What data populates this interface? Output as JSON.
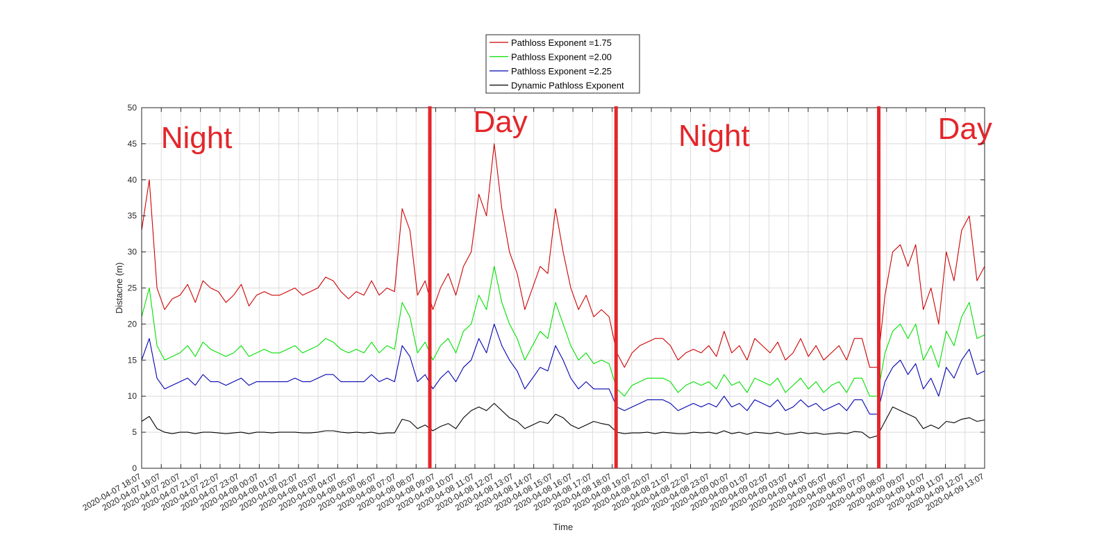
{
  "chart_data": {
    "type": "line",
    "title": "",
    "xlabel": "Time",
    "ylabel": "Distacne (m)",
    "ylim": [
      0,
      50
    ],
    "yticks": [
      0,
      5,
      10,
      15,
      20,
      25,
      30,
      35,
      40,
      45,
      50
    ],
    "grid": true,
    "legend_position": "top-center",
    "x_tick_labels": [
      "2020-04-07  18:07",
      "2020-04-07  19:07",
      "2020-04-07  20:07",
      "2020-04-07  21:07",
      "2020-04-07  22:07",
      "2020-04-07  23:07",
      "2020-04-08  00:07",
      "2020-04-08  01:07",
      "2020-04-08  02:07",
      "2020-04-08  03:07",
      "2020-04-08  04:07",
      "2020-04-08  05:07",
      "2020-04-08  06:07",
      "2020-04-08  07:07",
      "2020-04-08  08:07",
      "2020-04-08  09:07",
      "2020-04-08  10:07",
      "2020-04-08  11:07",
      "2020-04-08  12:07",
      "2020-04-08  13:07",
      "2020-04-08  14:07",
      "2020-04-08  15:07",
      "2020-04-08  16:07",
      "2020-04-08  17:07",
      "2020-04-08  18:07",
      "2020-04-08  19:07",
      "2020-04-08  20:07",
      "2020-04-08  21:07",
      "2020-04-08  22:07",
      "2020-04-08  23:07",
      "2020-04-09  00:07",
      "2020-04-09  01:07",
      "2020-04-09  02:07",
      "2020-04-09  03:07",
      "2020-04-09  04:07",
      "2020-04-09  05:07",
      "2020-04-09  06:07",
      "2020-04-09  07:07",
      "2020-04-09  08:07",
      "2020-04-09  09:07",
      "2020-04-09  10:07",
      "2020-04-09  11:07",
      "2020-04-09  12:07",
      "2020-04-09  13:07"
    ],
    "series": [
      {
        "name": "Pathloss Exponent =1.75",
        "color": "#cc0000",
        "values": [
          33,
          40,
          25,
          22,
          23.5,
          24,
          25.5,
          23,
          26,
          25,
          24.5,
          23,
          24,
          25.5,
          22.5,
          24,
          24.5,
          24,
          24,
          24.5,
          25,
          24,
          24.5,
          25,
          26.5,
          26,
          24.5,
          23.5,
          24.5,
          24,
          26,
          24,
          25,
          24.5,
          36,
          33,
          24,
          26,
          22,
          25,
          27,
          24,
          28,
          30,
          38,
          35,
          45,
          36,
          30,
          27,
          22,
          25,
          28,
          27,
          36,
          30,
          25,
          22,
          24,
          21,
          22,
          21,
          16,
          14,
          16,
          17,
          17.5,
          18,
          18,
          17,
          15,
          16,
          16.5,
          16,
          17,
          15.5,
          19,
          16,
          17,
          15,
          18,
          17,
          16,
          17.5,
          15,
          16,
          18,
          15.5,
          17,
          15,
          16,
          17,
          15,
          18,
          18,
          14,
          14,
          24,
          30,
          31,
          28,
          31,
          22,
          25,
          20,
          30,
          26,
          33,
          35,
          26,
          28
        ]
      },
      {
        "name": "Pathloss Exponent =2.00",
        "color": "#00e000",
        "values": [
          21,
          25,
          17,
          15,
          15.5,
          16,
          17,
          15.5,
          17.5,
          16.5,
          16,
          15.5,
          16,
          17,
          15.5,
          16,
          16.5,
          16,
          16,
          16.5,
          17,
          16,
          16.5,
          17,
          18,
          17.5,
          16.5,
          16,
          16.5,
          16,
          17.5,
          16,
          17,
          16.5,
          23,
          21,
          16,
          17.5,
          15,
          17,
          18,
          16,
          19,
          20,
          24,
          22,
          28,
          23,
          20,
          18,
          15,
          17,
          19,
          18,
          23,
          20,
          17,
          15,
          16,
          14.5,
          15,
          14.5,
          11,
          10,
          11.5,
          12,
          12.5,
          12.5,
          12.5,
          12,
          10.5,
          11.5,
          12,
          11.5,
          12,
          11,
          13,
          11.5,
          12,
          10.5,
          12.5,
          12,
          11.5,
          12.5,
          10.5,
          11.5,
          12.5,
          11,
          12,
          10.5,
          11.5,
          12,
          10.5,
          12.5,
          12.5,
          10,
          10,
          16,
          19,
          20,
          18,
          20,
          15,
          17,
          14,
          19,
          17,
          21,
          23,
          18,
          18.5
        ]
      },
      {
        "name": "Pathloss Exponent =2.25",
        "color": "#0000b0",
        "values": [
          15,
          18,
          12.5,
          11,
          11.5,
          12,
          12.5,
          11.5,
          13,
          12,
          12,
          11.5,
          12,
          12.5,
          11.5,
          12,
          12,
          12,
          12,
          12,
          12.5,
          12,
          12,
          12.5,
          13,
          13,
          12,
          12,
          12,
          12,
          13,
          12,
          12.5,
          12,
          17,
          15.5,
          12,
          13,
          11,
          12.5,
          13.5,
          12,
          14,
          15,
          18,
          16,
          20,
          17,
          15,
          13.5,
          11,
          12.5,
          14,
          13.5,
          17,
          15,
          12.5,
          11,
          12,
          11,
          11,
          11,
          8.5,
          8,
          8.5,
          9,
          9.5,
          9.5,
          9.5,
          9,
          8,
          8.5,
          9,
          8.5,
          9,
          8.5,
          10,
          8.5,
          9,
          8,
          9.5,
          9,
          8.5,
          9.5,
          8,
          8.5,
          9.5,
          8.5,
          9,
          8,
          8.5,
          9,
          8,
          9.5,
          9.5,
          7.5,
          7.5,
          12,
          14,
          15,
          13,
          14.5,
          11,
          12.5,
          10,
          14,
          12.5,
          15,
          16.5,
          13,
          13.5
        ]
      },
      {
        "name": "Dynamic Pathloss Exponent",
        "color": "#000000",
        "values": [
          6.5,
          7.2,
          5.5,
          5,
          4.8,
          5,
          5,
          4.8,
          5,
          5,
          4.9,
          4.8,
          4.9,
          5,
          4.8,
          5,
          5,
          4.9,
          5,
          5,
          5,
          4.9,
          4.9,
          5,
          5.2,
          5.2,
          5,
          4.9,
          5,
          4.9,
          5,
          4.8,
          4.9,
          4.9,
          6.8,
          6.5,
          5.5,
          6,
          5.2,
          5.8,
          6.2,
          5.5,
          7,
          8,
          8.5,
          8,
          9,
          8,
          7,
          6.5,
          5.5,
          6,
          6.5,
          6.2,
          7.5,
          7,
          6,
          5.5,
          6,
          6.5,
          6.2,
          6,
          5,
          4.8,
          4.9,
          4.9,
          5,
          4.8,
          5,
          4.9,
          4.8,
          4.8,
          5,
          4.9,
          5,
          4.8,
          5.2,
          4.8,
          5,
          4.7,
          5,
          4.9,
          4.8,
          5,
          4.7,
          4.8,
          5,
          4.8,
          4.9,
          4.7,
          4.8,
          4.9,
          4.8,
          5.1,
          5,
          4.2,
          4.5,
          6.5,
          8.5,
          8,
          7.5,
          7,
          5.5,
          6,
          5.5,
          6.5,
          6.3,
          6.8,
          7,
          6.5,
          6.7
        ]
      }
    ],
    "annotations": {
      "labels": [
        {
          "text": "Night",
          "x_index": 2.8
        },
        {
          "text": "Day",
          "x_index": 18.3
        },
        {
          "text": "Night",
          "x_index": 29.2
        },
        {
          "text": "Day",
          "x_index": 42
        }
      ],
      "vertical_lines_at_x_index": [
        14.7,
        24.2,
        37.6
      ],
      "color": "#e3262b"
    }
  }
}
